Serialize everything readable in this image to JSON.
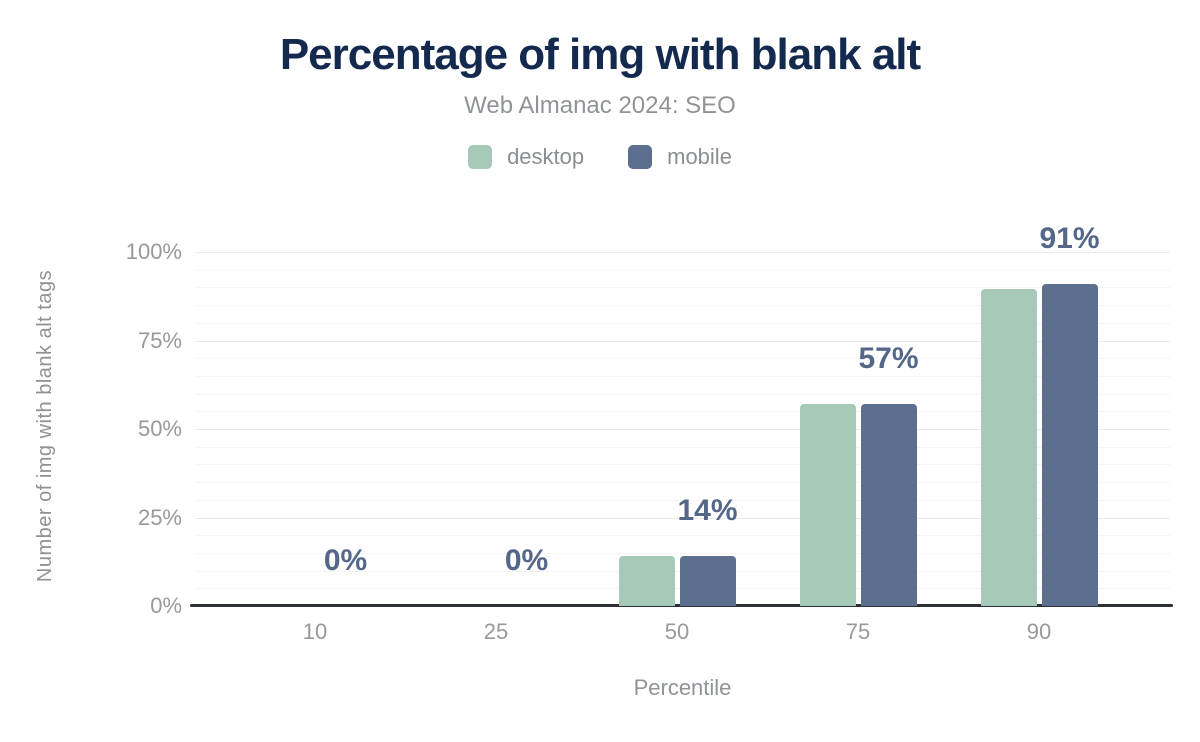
{
  "chart_data": {
    "type": "bar",
    "title": "Percentage of img with blank alt",
    "subtitle": "Web Almanac 2024: SEO",
    "xlabel": "Percentile",
    "ylabel": "Number of img with blank alt tags",
    "categories": [
      "10",
      "25",
      "50",
      "75",
      "90"
    ],
    "series": [
      {
        "name": "desktop",
        "color": "#a6cab7",
        "values": [
          0,
          0,
          14,
          57,
          89.5
        ]
      },
      {
        "name": "mobile",
        "color": "#5c6f8e",
        "values": [
          0,
          0,
          14,
          57,
          91
        ]
      }
    ],
    "value_labels": [
      "0%",
      "0%",
      "14%",
      "57%",
      "91%"
    ],
    "y_ticks": [
      {
        "value": 0,
        "label": "0%"
      },
      {
        "value": 25,
        "label": "25%"
      },
      {
        "value": 50,
        "label": "50%"
      },
      {
        "value": 75,
        "label": "75%"
      },
      {
        "value": 100,
        "label": "100%"
      }
    ],
    "ylim": [
      0,
      100
    ],
    "grid": {
      "visible": true,
      "major_step": 25,
      "minor_step": 5
    },
    "legend_position": "top"
  },
  "colors": {
    "title": "#14294e",
    "subtitle": "#909398",
    "axis_text": "#97999c",
    "value_label": "#546789",
    "axis_line": "#2d3135",
    "grid_major": "#eaeaea",
    "grid_minor": "#f4f4f4",
    "background": "#ffffff"
  }
}
